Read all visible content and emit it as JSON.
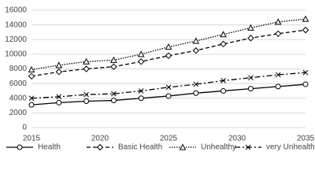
{
  "chart_data": {
    "type": "line",
    "x": [
      2015,
      2017,
      2019,
      2021,
      2023,
      2025,
      2027,
      2029,
      2031,
      2033,
      2035
    ],
    "xlim": [
      2015,
      2035
    ],
    "xticks": [
      2015,
      2020,
      2025,
      2030,
      2035
    ],
    "ylim": [
      0,
      16000
    ],
    "yticks": [
      0,
      2000,
      4000,
      6000,
      8000,
      10000,
      12000,
      14000,
      16000
    ],
    "grid": true,
    "legend": "bottom",
    "series": [
      {
        "name": "Health",
        "color": "#000000",
        "line_style": "solid",
        "marker": "circle",
        "values": [
          3100,
          3400,
          3600,
          3700,
          4000,
          4300,
          4700,
          5000,
          5300,
          5600,
          5900
        ]
      },
      {
        "name": "Basic Health",
        "color": "#000000",
        "line_style": "dashed",
        "marker": "diamond",
        "values": [
          7000,
          7600,
          8000,
          8300,
          9000,
          9800,
          10500,
          11400,
          12200,
          12800,
          13300
        ]
      },
      {
        "name": "Unhealthy",
        "color": "#000000",
        "line_style": "dotted",
        "marker": "triangle",
        "values": [
          7900,
          8500,
          9000,
          9200,
          10000,
          11000,
          11800,
          12700,
          13600,
          14400,
          14800
        ]
      },
      {
        "name": "very Unhealthy",
        "color": "#000000",
        "line_style": "dashdot",
        "marker": "x",
        "values": [
          4000,
          4200,
          4500,
          4600,
          5000,
          5500,
          5900,
          6400,
          6800,
          7200,
          7500
        ]
      }
    ]
  }
}
